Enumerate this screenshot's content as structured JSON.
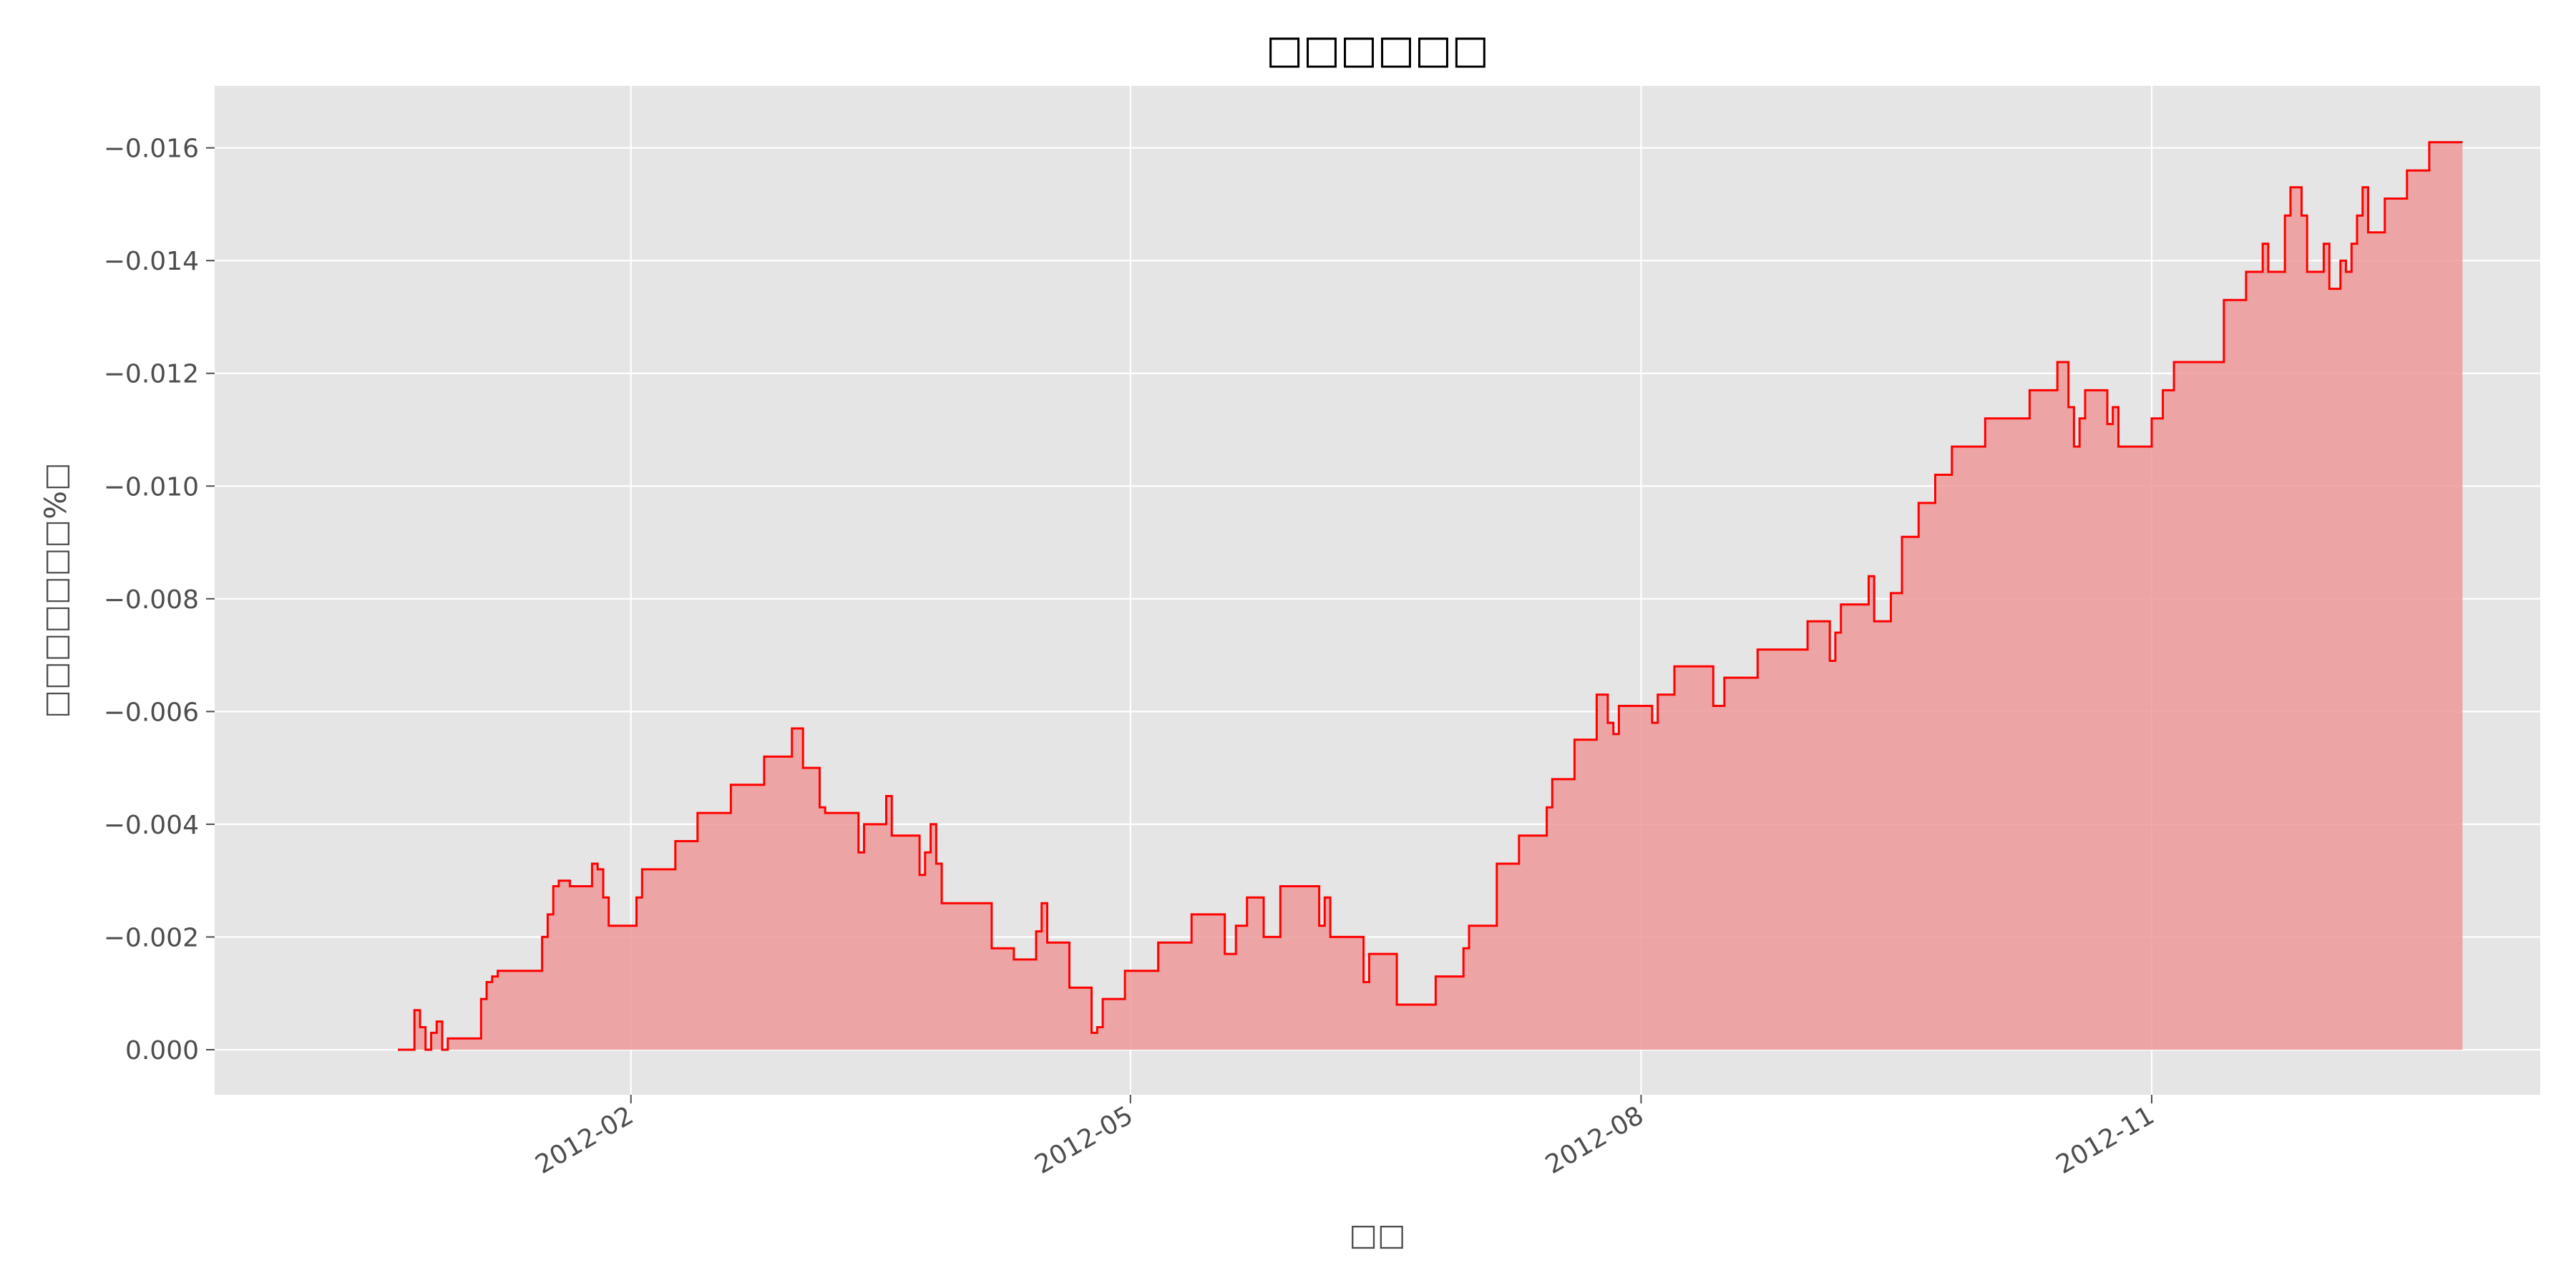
{
  "chart_data": {
    "type": "area",
    "title": "□□□□□□",
    "xlabel": "□□",
    "ylabel": "□□□□□□□%□",
    "y_axis_inverted": true,
    "grid": true,
    "legend": "none",
    "xlim": [
      "2011-11-18",
      "2013-01-10"
    ],
    "ylim": [
      0.0008,
      -0.0171
    ],
    "x_ticks": [
      "2012-02",
      "2012-05",
      "2012-08",
      "2012-11"
    ],
    "x_tick_dates": [
      "2012-02-01",
      "2012-05-01",
      "2012-08-01",
      "2012-11-01"
    ],
    "y_ticks": [
      0.0,
      -0.002,
      -0.004,
      -0.006,
      -0.008,
      -0.01,
      -0.012,
      -0.014,
      -0.016
    ],
    "y_tick_labels": [
      "0.000",
      "−0.002",
      "−0.004",
      "−0.006",
      "−0.008",
      "−0.010",
      "−0.012",
      "−0.014",
      "−0.016"
    ],
    "colors": {
      "line": "#ff0000",
      "fill": "#ee9999",
      "plot_bg": "#e5e5e5",
      "grid": "#ffffff"
    },
    "series": [
      {
        "x": [
          "2011-12-21",
          "2011-12-24",
          "2011-12-25",
          "2011-12-26",
          "2011-12-27",
          "2011-12-28",
          "2011-12-29",
          "2011-12-30",
          "2012-01-05",
          "2012-01-06",
          "2012-01-07",
          "2012-01-08",
          "2012-01-09",
          "2012-01-10",
          "2012-01-16",
          "2012-01-17",
          "2012-01-18",
          "2012-01-19",
          "2012-01-21",
          "2012-01-22",
          "2012-01-25",
          "2012-01-26",
          "2012-01-27",
          "2012-01-28",
          "2012-02-01",
          "2012-02-02",
          "2012-02-03",
          "2012-02-04",
          "2012-02-08",
          "2012-02-09",
          "2012-02-13",
          "2012-02-19",
          "2012-02-25",
          "2012-03-01",
          "2012-03-03",
          "2012-03-06",
          "2012-03-07",
          "2012-03-13",
          "2012-03-14",
          "2012-03-15",
          "2012-03-18",
          "2012-03-19",
          "2012-03-24",
          "2012-03-25",
          "2012-03-26",
          "2012-03-27",
          "2012-03-28",
          "2012-04-06",
          "2012-04-10",
          "2012-04-14",
          "2012-04-15",
          "2012-04-16",
          "2012-04-20",
          "2012-04-24",
          "2012-04-25",
          "2012-04-26",
          "2012-04-30",
          "2012-05-06",
          "2012-05-12",
          "2012-05-14",
          "2012-05-18",
          "2012-05-20",
          "2012-05-22",
          "2012-05-25",
          "2012-05-28",
          "2012-06-04",
          "2012-06-05",
          "2012-06-06",
          "2012-06-12",
          "2012-06-13",
          "2012-06-18",
          "2012-06-25",
          "2012-06-30",
          "2012-07-01",
          "2012-07-06",
          "2012-07-10",
          "2012-07-15",
          "2012-07-16",
          "2012-07-20",
          "2012-07-24",
          "2012-07-26",
          "2012-07-27",
          "2012-07-28",
          "2012-08-03",
          "2012-08-04",
          "2012-08-07",
          "2012-08-14",
          "2012-08-16",
          "2012-08-22",
          "2012-08-31",
          "2012-09-04",
          "2012-09-05",
          "2012-09-06",
          "2012-09-11",
          "2012-09-12",
          "2012-09-15",
          "2012-09-17",
          "2012-09-20",
          "2012-09-23",
          "2012-09-26",
          "2012-10-02",
          "2012-10-10",
          "2012-10-15",
          "2012-10-17",
          "2012-10-18",
          "2012-10-19",
          "2012-10-20",
          "2012-10-24",
          "2012-10-25",
          "2012-10-26",
          "2012-10-27",
          "2012-11-01",
          "2012-11-03",
          "2012-11-05",
          "2012-11-13",
          "2012-11-14",
          "2012-11-18",
          "2012-11-21",
          "2012-11-22",
          "2012-11-25",
          "2012-11-26",
          "2012-11-28",
          "2012-11-29",
          "2012-12-02",
          "2012-12-03",
          "2012-12-05",
          "2012-12-06",
          "2012-12-07",
          "2012-12-08",
          "2012-12-09",
          "2012-12-10",
          "2012-12-13",
          "2012-12-17",
          "2012-12-21"
        ],
        "y": [
          0.0,
          -0.0007,
          -0.0004,
          0.0,
          -0.0003,
          -0.0005,
          0.0,
          -0.0002,
          -0.0009,
          -0.0012,
          -0.0013,
          -0.0014,
          -0.0014,
          -0.0014,
          -0.002,
          -0.0024,
          -0.0029,
          -0.003,
          -0.0029,
          -0.0029,
          -0.0033,
          -0.0032,
          -0.0027,
          -0.0022,
          -0.0022,
          -0.0027,
          -0.0032,
          -0.0032,
          -0.0032,
          -0.0037,
          -0.0042,
          -0.0047,
          -0.0052,
          -0.0057,
          -0.005,
          -0.0043,
          -0.0042,
          -0.0035,
          -0.004,
          -0.004,
          -0.0045,
          -0.0038,
          -0.0031,
          -0.0035,
          -0.004,
          -0.0033,
          -0.0026,
          -0.0018,
          -0.0016,
          -0.0021,
          -0.0026,
          -0.0019,
          -0.0011,
          -0.0003,
          -0.0004,
          -0.0009,
          -0.0014,
          -0.0019,
          -0.0024,
          -0.0024,
          -0.0017,
          -0.0022,
          -0.0027,
          -0.002,
          -0.0029,
          -0.0022,
          -0.0027,
          -0.002,
          -0.0012,
          -0.0017,
          -0.0008,
          -0.0013,
          -0.0018,
          -0.0022,
          -0.0033,
          -0.0038,
          -0.0043,
          -0.0048,
          -0.0055,
          -0.0063,
          -0.0058,
          -0.0056,
          -0.0061,
          -0.0058,
          -0.0063,
          -0.0068,
          -0.0061,
          -0.0066,
          -0.0071,
          -0.0076,
          -0.0069,
          -0.0074,
          -0.0079,
          -0.0084,
          -0.0076,
          -0.0081,
          -0.0091,
          -0.0097,
          -0.0102,
          -0.0107,
          -0.0112,
          -0.0117,
          -0.0122,
          -0.0114,
          -0.0107,
          -0.0112,
          -0.0117,
          -0.0111,
          -0.0114,
          -0.0107,
          -0.0107,
          -0.0112,
          -0.0117,
          -0.0122,
          -0.0122,
          -0.0133,
          -0.0138,
          -0.0143,
          -0.0138,
          -0.0148,
          -0.0153,
          -0.0148,
          -0.0138,
          -0.0143,
          -0.0135,
          -0.014,
          -0.0138,
          -0.0143,
          -0.0148,
          -0.0153,
          -0.0145,
          -0.0151,
          -0.0156,
          -0.0161
        ]
      }
    ]
  }
}
